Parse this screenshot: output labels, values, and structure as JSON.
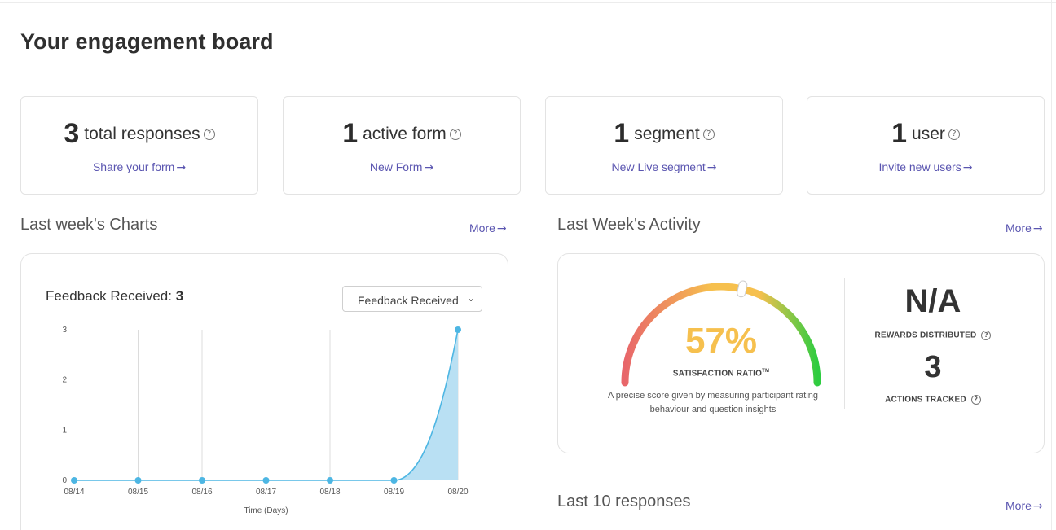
{
  "page": {
    "title": "Your engagement board"
  },
  "stats": [
    {
      "number": "3",
      "label": "total responses",
      "link": "Share your form"
    },
    {
      "number": "1",
      "label": "active form",
      "link": "New Form"
    },
    {
      "number": "1",
      "label": "segment",
      "link": "New Live segment"
    },
    {
      "number": "1",
      "label": "user",
      "link": "Invite new users"
    }
  ],
  "help_icon_glyph": "?",
  "arrow_glyph": "→",
  "charts_section": {
    "title": "Last week's Charts",
    "more": "More",
    "heading_label": "Feedback Received:",
    "heading_value": "3",
    "select_value": "Feedback Received",
    "select_chevron": "⌄"
  },
  "chart_data": {
    "type": "area",
    "x": [
      "08/14",
      "08/15",
      "08/16",
      "08/17",
      "08/18",
      "08/19",
      "08/20"
    ],
    "series": [
      {
        "values": [
          0,
          0,
          0,
          0,
          0,
          0,
          3
        ]
      }
    ],
    "xlabel": "Time (Days)",
    "ylabel": "",
    "ylim": [
      0,
      3
    ],
    "yticks": [
      0,
      1,
      2,
      3
    ],
    "grid": "vertical",
    "color": "#4db6e3",
    "fill_color": "#b9e0f3"
  },
  "activity_section": {
    "title": "Last Week's Activity",
    "more": "More",
    "satisfaction_value": "57%",
    "satisfaction_fraction": 0.57,
    "satisfaction_label": "SATISFACTION RATIO",
    "satisfaction_tm": "TM",
    "satisfaction_desc": "A precise score given by measuring participant rating behaviour and question insights",
    "rewards_value": "N/A",
    "rewards_label": "REWARDS DISTRIBUTED",
    "actions_value": "3",
    "actions_label": "ACTIONS TRACKED"
  },
  "responses_section": {
    "title": "Last 10 responses",
    "more": "More"
  },
  "colors": {
    "accent": "#5a55b0",
    "gauge_low": "#e8666a",
    "gauge_mid": "#f6c04e",
    "gauge_high": "#2ecc40"
  }
}
